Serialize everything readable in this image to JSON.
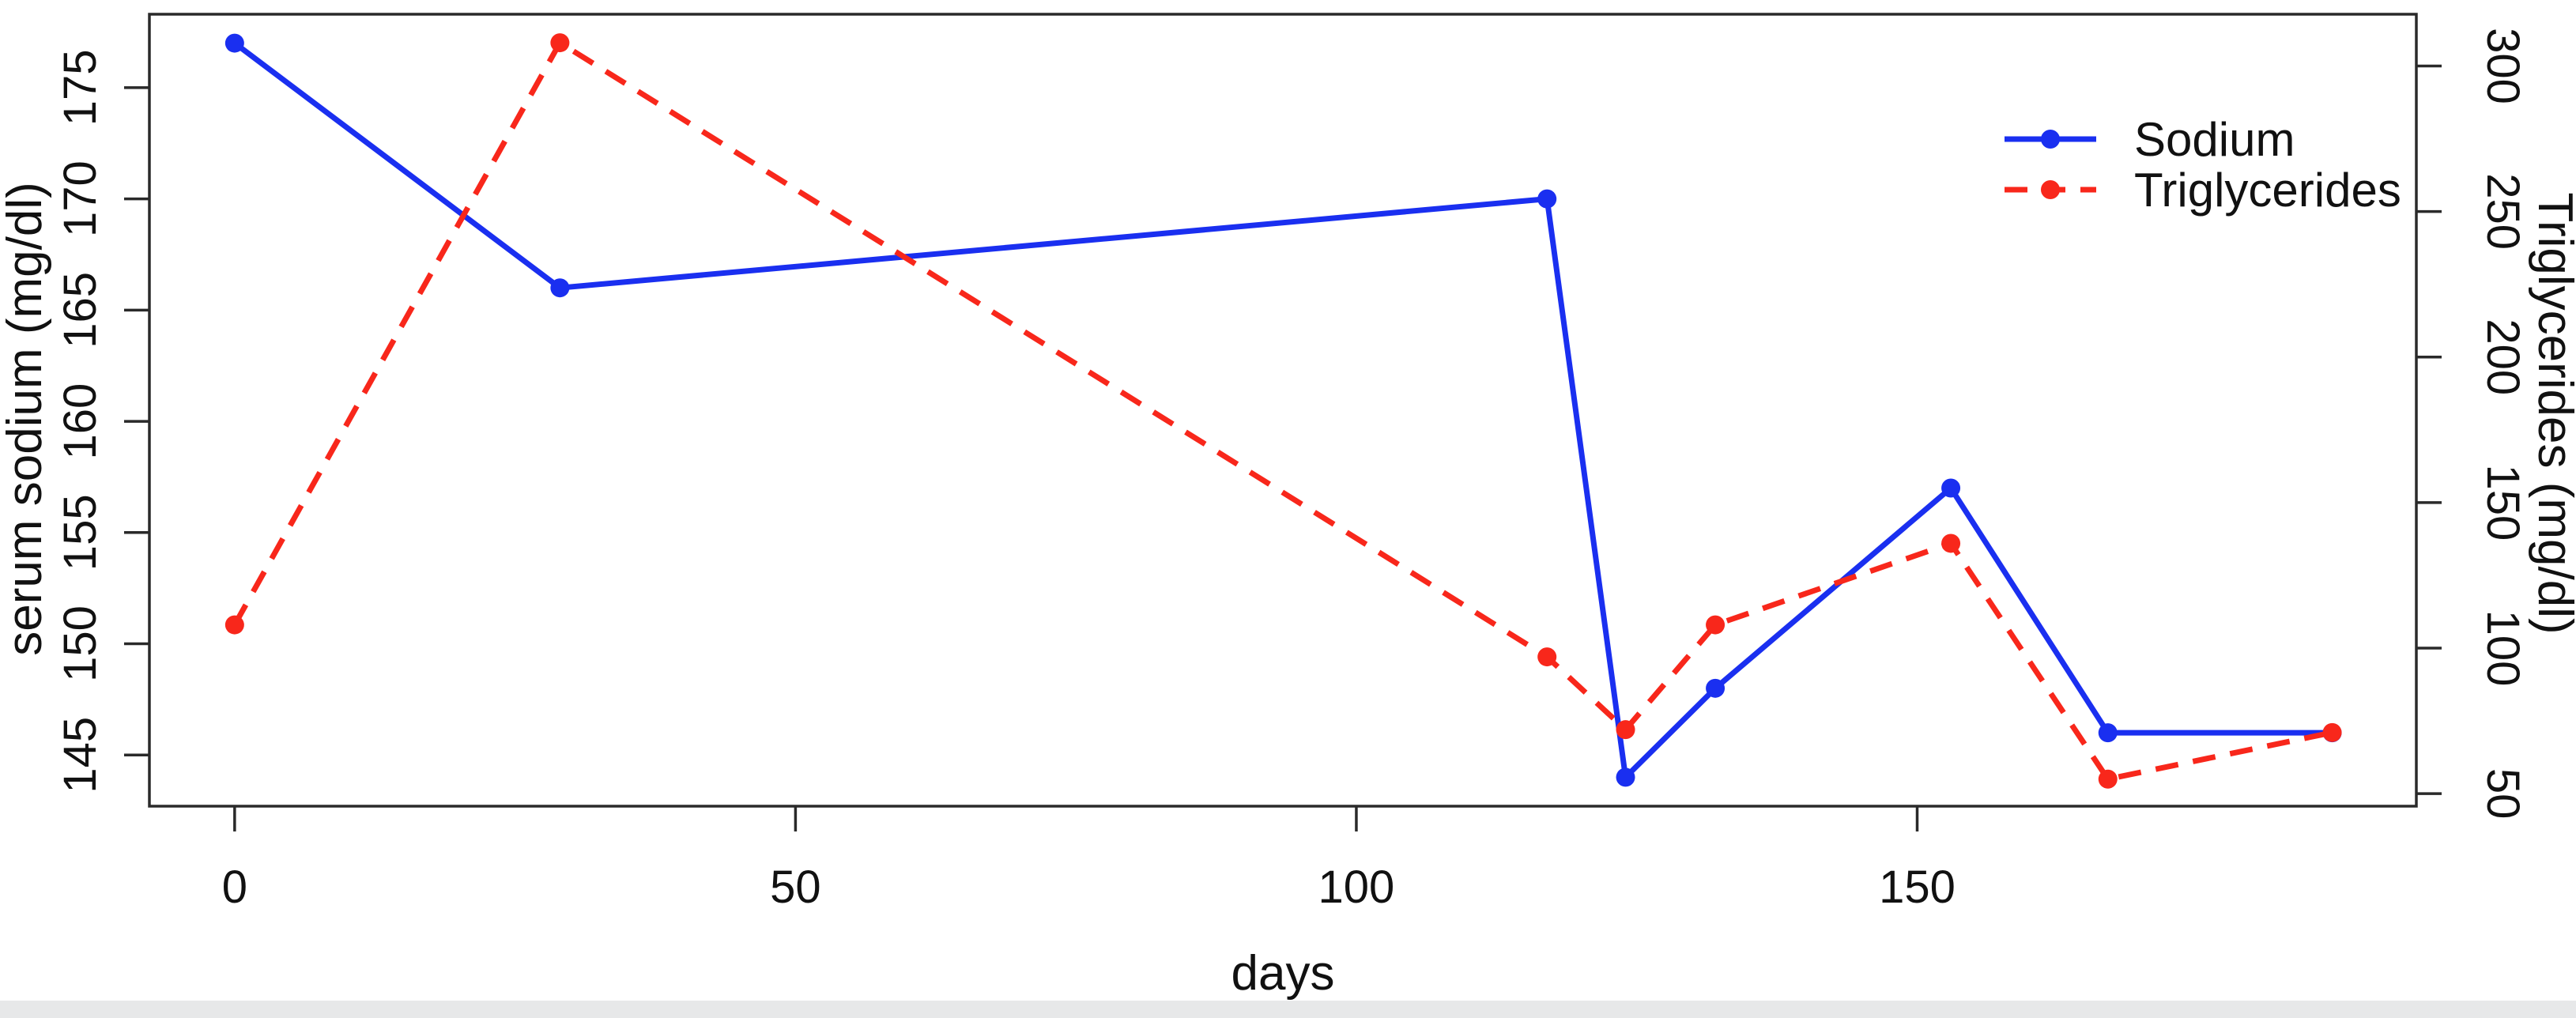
{
  "figure": {
    "background_color": "#ffffff",
    "footer_strip_color": "#e7e8e9",
    "axis_color": "#2a2a2a",
    "text_color": "#111111"
  },
  "chart_data": {
    "type": "line",
    "x": [
      0,
      29,
      117,
      124,
      132,
      153,
      167,
      187
    ],
    "series": [
      {
        "name": "Sodium",
        "values": [
          177,
          166,
          170,
          144,
          148,
          157,
          146,
          146
        ],
        "color": "#1a2ff0",
        "style": "solid",
        "marker": "circle",
        "axis": "left"
      },
      {
        "name": "Triglycerides",
        "values": [
          108,
          308,
          97,
          72,
          108,
          136,
          55,
          71
        ],
        "color": "#f8271b",
        "style": "dashed",
        "marker": "circle",
        "axis": "right"
      }
    ],
    "xlabel": "days",
    "ylabel_left": "serum sodium (mg/dl)",
    "ylabel_right": "Triglycerides (mg/dl)",
    "x_ticks": [
      0,
      50,
      100,
      150
    ],
    "left_ticks": [
      145,
      150,
      155,
      160,
      165,
      170,
      175
    ],
    "right_ticks": [
      50,
      100,
      150,
      200,
      250,
      300
    ],
    "x_range": [
      -7.6,
      194.5
    ],
    "left_range": [
      142.7,
      178.3
    ],
    "right_range": [
      45.7,
      317.8
    ],
    "grid": false,
    "legend_position": "top-right"
  }
}
